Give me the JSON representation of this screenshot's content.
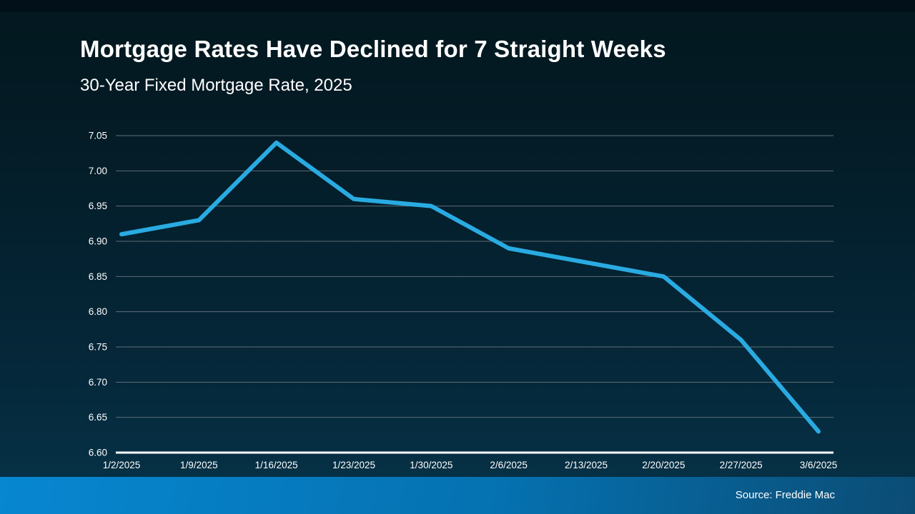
{
  "slide": {
    "title": "Mortgage Rates Have Declined for 7 Straight Weeks",
    "subtitle": "30-Year Fixed Mortgage Rate, 2025",
    "source": "Source: Freddie Mac"
  },
  "colors": {
    "background_top": "#021019",
    "background_bottom": "#063349",
    "line": "#29abe2",
    "gridline": "#6a757c",
    "axis": "#ffffff",
    "label_text": "#ffffff",
    "footer_bar_left": "#0787d1",
    "footer_bar_mid": "#0571b0",
    "footer_bar_right": "#0b4c74"
  },
  "chart_data": {
    "type": "line",
    "title": "Mortgage Rates Have Declined for 7 Straight Weeks",
    "subtitle": "30-Year Fixed Mortgage Rate, 2025",
    "categories": [
      "1/2/2025",
      "1/9/2025",
      "1/16/2025",
      "1/23/2025",
      "1/30/2025",
      "2/6/2025",
      "2/13/2025",
      "2/20/2025",
      "2/27/2025",
      "3/6/2025"
    ],
    "series": [
      {
        "name": "30-Year Fixed Mortgage Rate",
        "values": [
          6.91,
          6.93,
          7.04,
          6.96,
          6.95,
          6.89,
          6.87,
          6.85,
          6.76,
          6.63
        ]
      }
    ],
    "xlabel": "",
    "ylabel": "",
    "ylim": [
      6.6,
      7.05
    ],
    "ytick_step": 0.05,
    "ytick_decimals": 2,
    "grid": true,
    "legend": false,
    "source": "Source: Freddie Mac"
  }
}
